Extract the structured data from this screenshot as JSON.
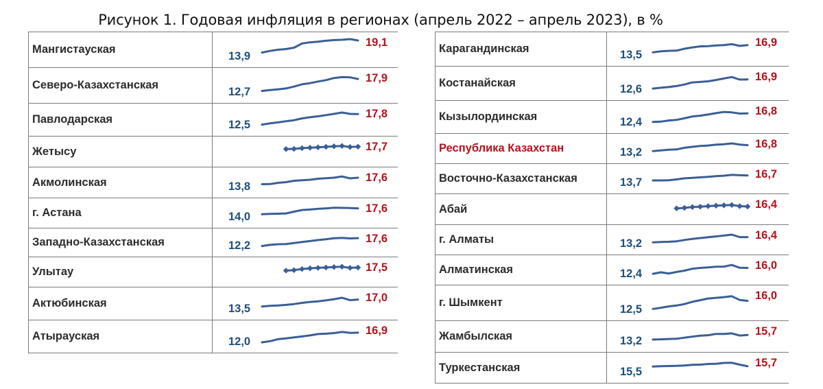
{
  "title": "Рисунок 1. Годовая инфляция в регионах (апрель 2022 – апрель 2023), в %",
  "colors": {
    "line": "#3a5e96",
    "start_value": "#1f4e79",
    "end_value": "#b5121b",
    "highlight_name": "#b5121b",
    "border": "#7a7a7a"
  },
  "chart_data": {
    "type": "line",
    "title": "Рисунок 1. Годовая инфляция в регионах (апрель 2022 – апрель 2023), в %",
    "x_count": 13,
    "panels": [
      {
        "rows": [
          {
            "name": "Мангистауская",
            "start": "13,9",
            "end": "19,1",
            "markers": false,
            "highlight": false,
            "values": [
              13.9,
              14.6,
              15.1,
              15.4,
              16.0,
              17.8,
              18.3,
              18.6,
              19.0,
              19.3,
              19.4,
              19.7,
              19.1
            ]
          },
          {
            "name": "Северо-Казахстанская",
            "start": "12,7",
            "end": "17,9",
            "markers": false,
            "highlight": false,
            "values": [
              12.7,
              13.1,
              13.4,
              13.8,
              14.6,
              15.6,
              16.1,
              16.8,
              17.4,
              18.3,
              18.7,
              18.6,
              17.9
            ]
          },
          {
            "name": "Павлодарская",
            "start": "12,5",
            "end": "17,8",
            "markers": false,
            "highlight": false,
            "values": [
              12.5,
              13.1,
              13.6,
              14.2,
              14.7,
              15.6,
              16.2,
              16.7,
              17.3,
              17.9,
              18.6,
              17.9,
              17.8
            ]
          },
          {
            "name": "Жетысу",
            "start": "",
            "end": "17,7",
            "markers": true,
            "highlight": false,
            "values": [
              null,
              null,
              null,
              16.3,
              16.4,
              16.8,
              17.1,
              17.3,
              17.6,
              17.9,
              18.1,
              17.5,
              17.7
            ]
          },
          {
            "name": "Акмолинская",
            "start": "13,8",
            "end": "17,6",
            "markers": false,
            "highlight": false,
            "values": [
              13.8,
              13.9,
              14.6,
              15.0,
              15.8,
              16.1,
              16.4,
              17.0,
              17.3,
              17.6,
              18.3,
              17.2,
              17.6
            ]
          },
          {
            "name": "г. Астана",
            "start": "14,0",
            "end": "17,6",
            "markers": false,
            "highlight": false,
            "values": [
              14.0,
              14.2,
              14.3,
              14.5,
              15.6,
              16.6,
              16.9,
              17.3,
              17.6,
              18.0,
              17.9,
              17.8,
              17.6
            ]
          },
          {
            "name": "Западно-Казахстанская",
            "start": "12,2",
            "end": "17,6",
            "markers": false,
            "highlight": false,
            "values": [
              12.2,
              13.0,
              13.4,
              13.5,
              14.2,
              14.9,
              15.6,
              16.3,
              16.8,
              17.5,
              17.8,
              17.4,
              17.6
            ]
          },
          {
            "name": "Улытау",
            "start": "",
            "end": "17,5",
            "markers": true,
            "highlight": false,
            "values": [
              null,
              null,
              null,
              15.6,
              15.9,
              16.6,
              17.0,
              17.3,
              17.5,
              17.8,
              18.0,
              17.3,
              17.5
            ]
          },
          {
            "name": "Актюбинская",
            "start": "13,5",
            "end": "17,0",
            "markers": false,
            "highlight": false,
            "values": [
              13.5,
              13.8,
              14.0,
              14.3,
              14.7,
              15.3,
              15.8,
              16.1,
              16.6,
              17.2,
              17.9,
              16.7,
              17.0
            ]
          },
          {
            "name": "Атырауская",
            "start": "12,0",
            "end": "16,9",
            "markers": false,
            "highlight": false,
            "values": [
              12.0,
              12.6,
              13.6,
              14.0,
              14.5,
              15.0,
              15.5,
              16.2,
              16.4,
              16.7,
              17.3,
              16.8,
              16.9
            ]
          }
        ]
      },
      {
        "rows": [
          {
            "name": "Карагандинская",
            "start": "13,5",
            "end": "16,9",
            "markers": false,
            "highlight": false,
            "values": [
              13.5,
              14.0,
              14.2,
              14.3,
              15.2,
              15.8,
              16.3,
              16.4,
              16.7,
              16.9,
              17.3,
              16.5,
              16.9
            ]
          },
          {
            "name": "Костанайская",
            "start": "12,6",
            "end": "16,9",
            "markers": false,
            "highlight": false,
            "values": [
              12.6,
              13.0,
              13.3,
              13.8,
              14.5,
              15.5,
              15.7,
              16.0,
              16.6,
              17.3,
              18.0,
              16.8,
              16.9
            ]
          },
          {
            "name": "Кызылординская",
            "start": "12,4",
            "end": "16,8",
            "markers": false,
            "highlight": false,
            "values": [
              12.4,
              12.6,
              13.2,
              13.5,
              14.3,
              15.2,
              15.6,
              16.2,
              16.9,
              17.5,
              17.3,
              16.7,
              16.8
            ]
          },
          {
            "name": "Республика Казахстан",
            "start": "13,2",
            "end": "16,8",
            "markers": false,
            "highlight": true,
            "values": [
              13.2,
              13.6,
              14.0,
              14.2,
              15.2,
              15.8,
              16.3,
              16.6,
              17.1,
              17.4,
              17.9,
              17.2,
              16.8
            ]
          },
          {
            "name": "Восточно-Казахстанская",
            "start": "13,7",
            "end": "16,7",
            "markers": false,
            "highlight": false,
            "values": [
              13.7,
              13.7,
              13.8,
              14.3,
              15.0,
              15.3,
              15.6,
              15.9,
              16.3,
              16.6,
              17.1,
              16.9,
              16.7
            ]
          },
          {
            "name": "Абай",
            "start": "",
            "end": "16,4",
            "markers": true,
            "highlight": false,
            "values": [
              null,
              null,
              null,
              15.3,
              15.6,
              16.1,
              16.3,
              16.6,
              16.9,
              17.1,
              17.3,
              16.6,
              16.4
            ]
          },
          {
            "name": "г. Алматы",
            "start": "13,2",
            "end": "16,4",
            "markers": false,
            "highlight": false,
            "values": [
              13.2,
              13.4,
              13.5,
              13.8,
              14.6,
              15.3,
              15.8,
              16.3,
              16.8,
              17.3,
              17.9,
              16.4,
              16.4
            ]
          },
          {
            "name": "Алматинская",
            "start": "12,4",
            "end": "16,0",
            "markers": false,
            "highlight": false,
            "values": [
              12.4,
              13.3,
              12.6,
              13.5,
              14.3,
              15.5,
              16.0,
              16.3,
              16.7,
              16.8,
              17.8,
              16.1,
              16.0
            ]
          },
          {
            "name": "г. Шымкент",
            "start": "12,5",
            "end": "16,0",
            "markers": false,
            "highlight": false,
            "values": [
              12.5,
              13.0,
              13.6,
              14.0,
              14.6,
              15.6,
              16.3,
              17.0,
              17.3,
              17.6,
              18.0,
              16.4,
              16.0
            ]
          },
          {
            "name": "Жамбылская",
            "start": "13,2",
            "end": "15,7",
            "markers": false,
            "highlight": false,
            "values": [
              13.2,
              13.3,
              13.5,
              13.6,
              14.2,
              14.8,
              15.3,
              15.6,
              16.3,
              16.3,
              16.6,
              15.4,
              15.7
            ]
          },
          {
            "name": "Туркестанская",
            "start": "15,5",
            "end": "15,7",
            "markers": false,
            "highlight": false,
            "values": [
              15.5,
              15.7,
              15.8,
              15.9,
              16.1,
              16.5,
              16.6,
              17.0,
              17.1,
              17.6,
              17.7,
              16.6,
              15.7
            ]
          }
        ]
      }
    ]
  }
}
